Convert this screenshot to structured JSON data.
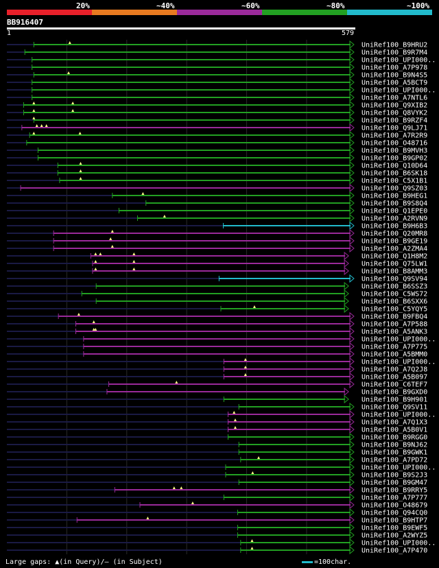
{
  "legend": {
    "items": [
      {
        "label": "20%",
        "color": "#e8202a"
      },
      {
        "label": "~40%",
        "color": "#e87a20"
      },
      {
        "label": "~60%",
        "color": "#9a2a9a"
      },
      {
        "label": "~80%",
        "color": "#22a022"
      },
      {
        "label": "~100%",
        "color": "#22bbcc"
      }
    ]
  },
  "query": {
    "id": "BB916407",
    "start": "1",
    "end": "579"
  },
  "footer": {
    "text": "Large gaps: ▲(in Query)/— (in Subject)",
    "scale": "=100char."
  },
  "hits": [
    {
      "name": "UniRef100_B9HRU2",
      "s": 45,
      "e": 579,
      "c": "g",
      "m": [
        105
      ]
    },
    {
      "name": "UniRef100_B9R7M4",
      "s": 30,
      "e": 579,
      "c": "g",
      "m": []
    },
    {
      "name": "UniRef100_UPI000..",
      "s": 42,
      "e": 579,
      "c": "g",
      "m": []
    },
    {
      "name": "UniRef100_A7P978",
      "s": 42,
      "e": 579,
      "c": "g",
      "m": []
    },
    {
      "name": "UniRef100_B9N4S5",
      "s": 45,
      "e": 579,
      "c": "g",
      "m": [
        103
      ]
    },
    {
      "name": "UniRef100_A5BCT9",
      "s": 42,
      "e": 579,
      "c": "g",
      "m": []
    },
    {
      "name": "UniRef100_UPI000..",
      "s": 42,
      "e": 579,
      "c": "g",
      "m": []
    },
    {
      "name": "UniRef100_A7NTL6",
      "s": 42,
      "e": 579,
      "c": "g",
      "m": []
    },
    {
      "name": "UniRef100_Q9XIB2",
      "s": 28,
      "e": 579,
      "c": "g",
      "m": [
        45,
        110
      ]
    },
    {
      "name": "UniRef100_Q8VYK2",
      "s": 28,
      "e": 579,
      "c": "g",
      "m": [
        45,
        110
      ]
    },
    {
      "name": "UniRef100_B9RZF4",
      "s": 45,
      "e": 579,
      "c": "g",
      "m": [
        45
      ]
    },
    {
      "name": "UniRef100_Q9LJ71",
      "s": 25,
      "e": 579,
      "c": "p",
      "m": [
        50,
        58,
        66
      ]
    },
    {
      "name": "UniRef100_A7R2R9",
      "s": 38,
      "e": 579,
      "c": "g",
      "m": [
        45,
        122
      ]
    },
    {
      "name": "UniRef100_O48716",
      "s": 33,
      "e": 579,
      "c": "g",
      "m": []
    },
    {
      "name": "UniRef100_B9MVH3",
      "s": 52,
      "e": 579,
      "c": "g",
      "m": []
    },
    {
      "name": "UniRef100_B9GP02",
      "s": 52,
      "e": 579,
      "c": "g",
      "m": []
    },
    {
      "name": "UniRef100_Q10D64",
      "s": 85,
      "e": 579,
      "c": "g",
      "m": [
        123
      ]
    },
    {
      "name": "UniRef100_B6SK18",
      "s": 85,
      "e": 579,
      "c": "g",
      "m": [
        123
      ]
    },
    {
      "name": "UniRef100_C5X1B1",
      "s": 88,
      "e": 579,
      "c": "g",
      "m": [
        123
      ]
    },
    {
      "name": "UniRef100_Q9SZ03",
      "s": 23,
      "e": 579,
      "c": "p",
      "m": []
    },
    {
      "name": "UniRef100_B9HEG1",
      "s": 176,
      "e": 579,
      "c": "g",
      "m": [
        227
      ]
    },
    {
      "name": "UniRef100_B9S8Q4",
      "s": 232,
      "e": 579,
      "c": "g",
      "m": []
    },
    {
      "name": "UniRef100_Q1EPE0",
      "s": 187,
      "e": 579,
      "c": "g",
      "m": []
    },
    {
      "name": "UniRef100_A2RVN9",
      "s": 218,
      "e": 579,
      "c": "g",
      "m": [
        263
      ]
    },
    {
      "name": "UniRef100_B9H6B3",
      "s": 361,
      "e": 579,
      "c": "c",
      "m": []
    },
    {
      "name": "UniRef100_Q20MR8",
      "s": 78,
      "e": 579,
      "c": "p",
      "m": [
        176
      ]
    },
    {
      "name": "UniRef100_B9GE19",
      "s": 78,
      "e": 579,
      "c": "p",
      "m": [
        173
      ]
    },
    {
      "name": "UniRef100_A2ZMA4",
      "s": 78,
      "e": 579,
      "c": "p",
      "m": [
        176
      ]
    },
    {
      "name": "UniRef100_Q1H8M2",
      "s": 140,
      "e": 570,
      "c": "p",
      "m": [
        148,
        156,
        212
      ]
    },
    {
      "name": "UniRef100_Q75LW1",
      "s": 143,
      "e": 570,
      "c": "p",
      "m": [
        148,
        212
      ]
    },
    {
      "name": "UniRef100_B8AMM3",
      "s": 143,
      "e": 570,
      "c": "p",
      "m": [
        148,
        212
      ]
    },
    {
      "name": "UniRef100_Q9SV94",
      "s": 354,
      "e": 579,
      "c": "c",
      "m": []
    },
    {
      "name": "UniRef100_B6SSZ3",
      "s": 149,
      "e": 570,
      "c": "g",
      "m": []
    },
    {
      "name": "UniRef100_C5WS72",
      "s": 125,
      "e": 570,
      "c": "g",
      "m": []
    },
    {
      "name": "UniRef100_B6SXX6",
      "s": 149,
      "e": 570,
      "c": "g",
      "m": []
    },
    {
      "name": "UniRef100_C5YQY5",
      "s": 357,
      "e": 570,
      "c": "g",
      "m": [
        413
      ]
    },
    {
      "name": "UniRef100_B9FBQ4",
      "s": 86,
      "e": 579,
      "c": "p",
      "m": [
        120
      ]
    },
    {
      "name": "UniRef100_A7P588",
      "s": 115,
      "e": 579,
      "c": "p",
      "m": [
        145
      ]
    },
    {
      "name": "UniRef100_A5ANK3",
      "s": 115,
      "e": 579,
      "c": "p",
      "m": [
        145,
        148
      ]
    },
    {
      "name": "UniRef100_UPI000..",
      "s": 128,
      "e": 579,
      "c": "p",
      "m": []
    },
    {
      "name": "UniRef100_A7P775",
      "s": 128,
      "e": 579,
      "c": "p",
      "m": []
    },
    {
      "name": "UniRef100_A5BMM0",
      "s": 128,
      "e": 579,
      "c": "p",
      "m": []
    },
    {
      "name": "UniRef100_UPI000..",
      "s": 362,
      "e": 579,
      "c": "p",
      "m": [
        398
      ]
    },
    {
      "name": "UniRef100_A7Q2J8",
      "s": 362,
      "e": 579,
      "c": "p",
      "m": [
        398
      ]
    },
    {
      "name": "UniRef100_A5B097",
      "s": 362,
      "e": 579,
      "c": "p",
      "m": [
        398
      ]
    },
    {
      "name": "UniRef100_C6TEF7",
      "s": 170,
      "e": 579,
      "c": "p",
      "m": [
        283
      ]
    },
    {
      "name": "UniRef100_B9GXD0",
      "s": 167,
      "e": 570,
      "c": "p",
      "m": []
    },
    {
      "name": "UniRef100_B9H901",
      "s": 362,
      "e": 570,
      "c": "g",
      "m": []
    },
    {
      "name": "UniRef100_Q9SV11",
      "s": 387,
      "e": 579,
      "c": "g",
      "m": []
    },
    {
      "name": "UniRef100_UPI000..",
      "s": 369,
      "e": 579,
      "c": "p",
      "m": [
        379
      ]
    },
    {
      "name": "UniRef100_A7Q1X3",
      "s": 369,
      "e": 579,
      "c": "p",
      "m": [
        381
      ]
    },
    {
      "name": "UniRef100_A5B0V1",
      "s": 369,
      "e": 579,
      "c": "p",
      "m": [
        381
      ]
    },
    {
      "name": "UniRef100_B9RGG0",
      "s": 369,
      "e": 579,
      "c": "g",
      "m": []
    },
    {
      "name": "UniRef100_B9NJ62",
      "s": 387,
      "e": 579,
      "c": "g",
      "m": []
    },
    {
      "name": "UniRef100_B9GWK1",
      "s": 387,
      "e": 579,
      "c": "g",
      "m": []
    },
    {
      "name": "UniRef100_A7PD72",
      "s": 390,
      "e": 579,
      "c": "g",
      "m": [
        420
      ]
    },
    {
      "name": "UniRef100_UPI000..",
      "s": 365,
      "e": 579,
      "c": "g",
      "m": []
    },
    {
      "name": "UniRef100_B9S2J3",
      "s": 365,
      "e": 579,
      "c": "g",
      "m": [
        410
      ]
    },
    {
      "name": "UniRef100_B9GM47",
      "s": 387,
      "e": 579,
      "c": "g",
      "m": []
    },
    {
      "name": "UniRef100_B9RRY5",
      "s": 180,
      "e": 579,
      "c": "p",
      "m": [
        279,
        291
      ]
    },
    {
      "name": "UniRef100_A7P777",
      "s": 362,
      "e": 579,
      "c": "g",
      "m": []
    },
    {
      "name": "UniRef100_O48679",
      "s": 222,
      "e": 579,
      "c": "p",
      "m": [
        310
      ]
    },
    {
      "name": "UniRef100_Q94CQ0",
      "s": 385,
      "e": 579,
      "c": "g",
      "m": []
    },
    {
      "name": "UniRef100_B9HTP7",
      "s": 117,
      "e": 579,
      "c": "p",
      "m": [
        235
      ]
    },
    {
      "name": "UniRef100_B9EWF5",
      "s": 385,
      "e": 579,
      "c": "g",
      "m": []
    },
    {
      "name": "UniRef100_A2WYZ5",
      "s": 385,
      "e": 579,
      "c": "g",
      "m": []
    },
    {
      "name": "UniRef100_UPI000..",
      "s": 390,
      "e": 579,
      "c": "g",
      "m": [
        409
      ]
    },
    {
      "name": "UniRef100_A7P470",
      "s": 390,
      "e": 579,
      "c": "g",
      "m": [
        409
      ]
    }
  ]
}
